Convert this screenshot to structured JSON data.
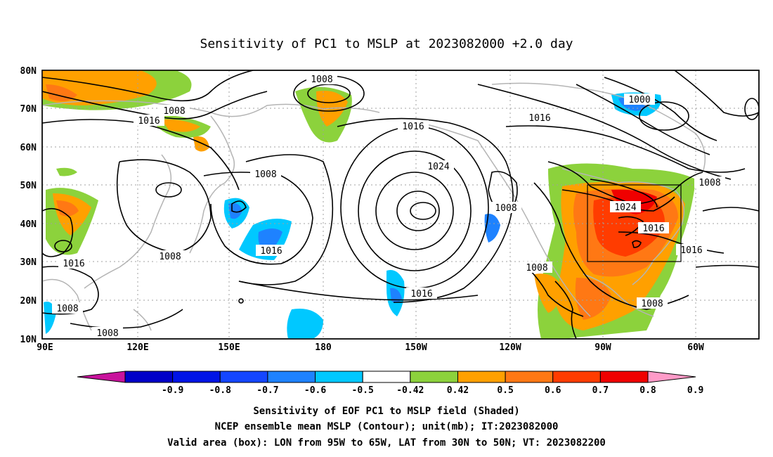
{
  "title": "Sensitivity of PC1 to MSLP at 2023082000 +2.0 day",
  "map": {
    "lon_range": [
      "90E",
      "50W"
    ],
    "lat_range": [
      "10N",
      "80N"
    ],
    "x_ticks": [
      "90E",
      "120E",
      "150E",
      "180",
      "150W",
      "120W",
      "90W",
      "60W"
    ],
    "y_ticks": [
      "80N",
      "70N",
      "60N",
      "50N",
      "40N",
      "30N",
      "20N",
      "10N"
    ],
    "contour_labels": [
      "1008",
      "1016",
      "1008",
      "1008",
      "1016",
      "1024",
      "1016",
      "1000",
      "1008",
      "1008",
      "1024",
      "1016",
      "1016",
      "1008",
      "1016",
      "1016",
      "1008",
      "1008",
      "1008"
    ],
    "box": {
      "lon_west": "95W",
      "lon_east": "65W",
      "lat_south": "30N",
      "lat_north": "50N"
    }
  },
  "colorbar": {
    "labels": [
      "-0.9",
      "-0.8",
      "-0.7",
      "-0.6",
      "-0.5",
      "-0.42",
      "0.42",
      "0.5",
      "0.6",
      "0.7",
      "0.8",
      "0.9"
    ],
    "colors": [
      "#c8129c",
      "#0000c8",
      "#0014e6",
      "#1446ff",
      "#1e82ff",
      "#00c8ff",
      "#ffffff",
      "#8cd23c",
      "#ffa000",
      "#ff7814",
      "#ff3c00",
      "#f00000",
      "#ff9bc8"
    ]
  },
  "footer": {
    "line1": "Sensitivity of EOF PC1 to MSLP field (Shaded)",
    "line2": "NCEP ensemble mean MSLP (Contour); unit(mb); IT:2023082000",
    "line3": "Valid area (box): LON from 95W to 65W, LAT from 30N to 50N; VT: 2023082200"
  }
}
